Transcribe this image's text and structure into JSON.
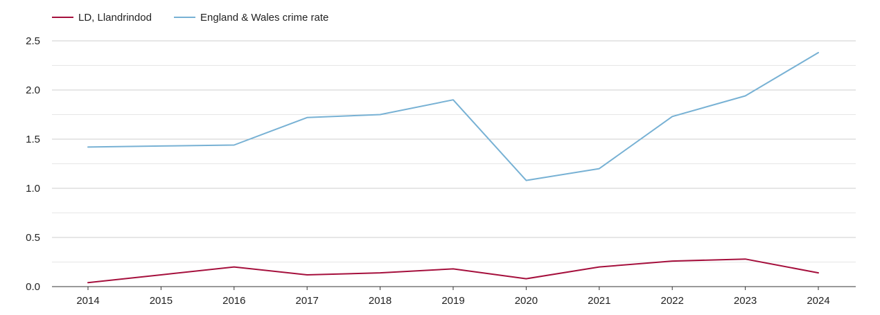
{
  "chart_data": {
    "type": "line",
    "title": "",
    "xlabel": "",
    "ylabel": "",
    "categories": [
      "2014",
      "2015",
      "2016",
      "2017",
      "2018",
      "2019",
      "2020",
      "2021",
      "2022",
      "2023",
      "2024"
    ],
    "ylim": [
      0,
      2.5
    ],
    "y_ticks": [
      "0.0",
      "0.5",
      "1.0",
      "1.5",
      "2.0",
      "2.5"
    ],
    "y_tick_values": [
      0,
      0.5,
      1.0,
      1.5,
      2.0,
      2.5
    ],
    "grid": true,
    "legend_position": "top-left",
    "series": [
      {
        "name": "LD, Llandrindod",
        "color": "#a50f3c",
        "values": [
          0.04,
          0.12,
          0.2,
          0.12,
          0.14,
          0.18,
          0.08,
          0.2,
          0.26,
          0.28,
          0.14
        ]
      },
      {
        "name": "England & Wales crime rate",
        "color": "#77b1d4",
        "values": [
          1.42,
          1.43,
          1.44,
          1.72,
          1.75,
          1.9,
          1.08,
          1.2,
          1.73,
          1.94,
          2.38
        ]
      }
    ]
  }
}
